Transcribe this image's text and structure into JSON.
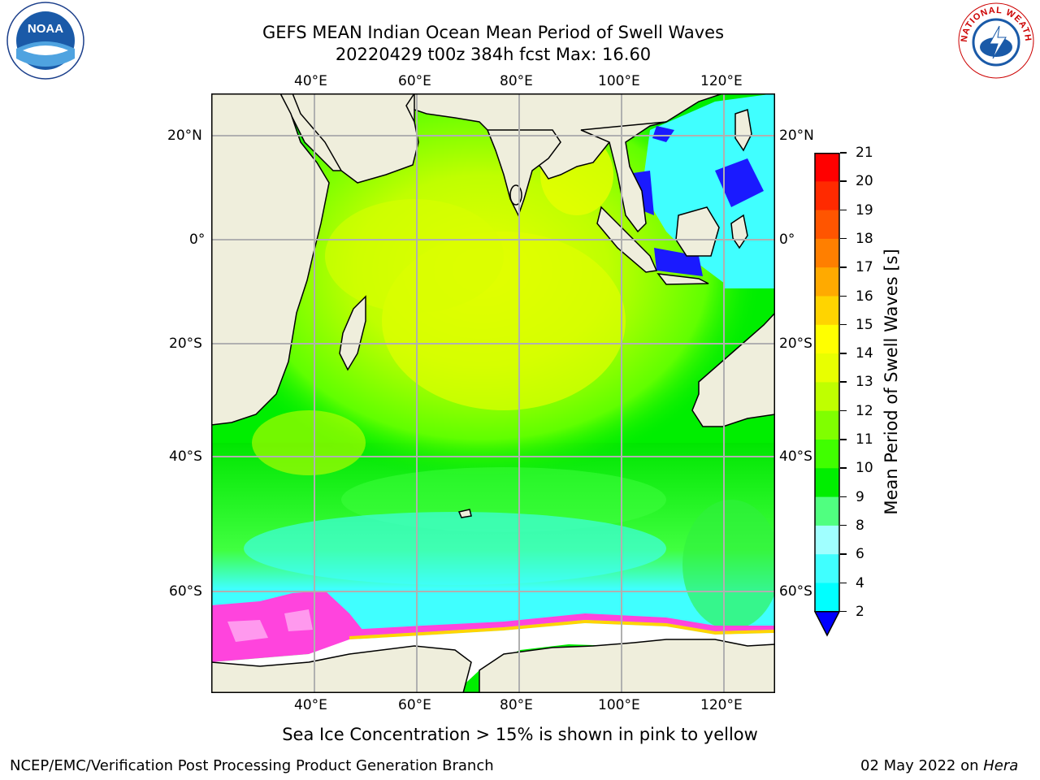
{
  "header": {
    "title_line1": "GEFS MEAN Indian Ocean Mean Period of Swell Waves",
    "title_line2": "20220429 t00z 384h fcst   Max: 16.60"
  },
  "logos": {
    "left": {
      "text": "NOAA",
      "icon": "noaa-logo"
    },
    "right": {
      "text": "NATIONAL WEATHER SERVICE",
      "icon": "nws-logo"
    }
  },
  "map": {
    "lon_labels": [
      "40°E",
      "60°E",
      "80°E",
      "100°E",
      "120°E"
    ],
    "lat_labels": [
      "20°N",
      "0°",
      "20°S",
      "40°S",
      "60°S"
    ],
    "colors": {
      "land": "#efeedc",
      "ice_free": "#ffffff",
      "grid": "#b0b0b0",
      "sea_ice": "#ff44dd"
    }
  },
  "colorbar": {
    "label": "Mean Period of Swell Waves [s]",
    "ticks": [
      "21",
      "20",
      "19",
      "18",
      "17",
      "16",
      "15",
      "14",
      "13",
      "12",
      "11",
      "10",
      "9",
      "8",
      "6",
      "4",
      "2"
    ],
    "colors": [
      "#ff0000",
      "#ff2a00",
      "#ff5500",
      "#ff7f00",
      "#ffaa00",
      "#ffd400",
      "#ffff00",
      "#e8ff00",
      "#bfff00",
      "#80ff00",
      "#40ff00",
      "#00ee00",
      "#50ff80",
      "#a0ffff",
      "#40ffff",
      "#00ffff",
      "#0080ff"
    ],
    "arrow_color": "#0000ff"
  },
  "note": "Sea Ice Concentration > 15% is shown in pink to yellow",
  "footer": {
    "left": "NCEP/EMC/Verification Post Processing Product Generation Branch",
    "right_date": "02 May 2022 on ",
    "right_machine": "Hera"
  }
}
